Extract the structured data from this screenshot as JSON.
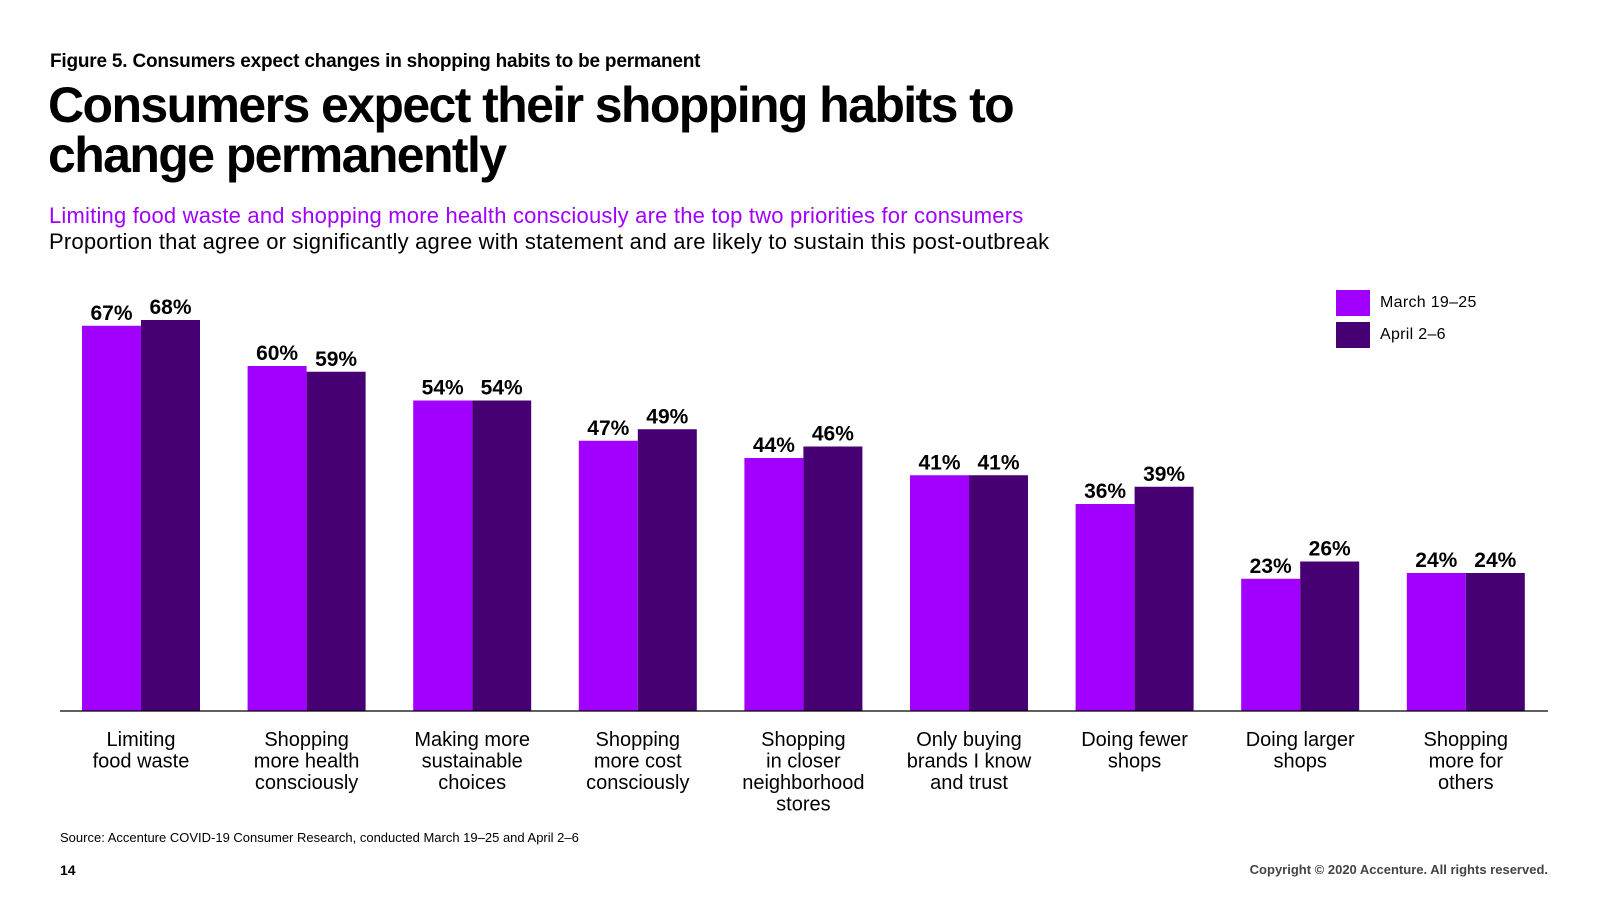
{
  "figure_label": "Figure 5. Consumers expect changes in shopping habits to be permanent",
  "headline": "Consumers expect their shopping habits to change permanently",
  "subtitle": "Limiting food waste and shopping more health consciously are the top two priorities for consumers",
  "description": "Proportion that agree or significantly agree with statement and are likely to sustain this post-outbreak",
  "source": "Source: Accenture COVID-19 Consumer Research, conducted March 19–25 and April 2–6",
  "page_number": "14",
  "copyright": "Copyright © 2020 Accenture. All rights reserved.",
  "colors": {
    "march": "#A100FF",
    "april": "#460073"
  },
  "chart_data": {
    "type": "bar",
    "categories": [
      [
        "Limiting",
        "food waste"
      ],
      [
        "Shopping",
        "more health",
        "consciously"
      ],
      [
        "Making more",
        "sustainable",
        "choices"
      ],
      [
        "Shopping",
        "more cost",
        "consciously"
      ],
      [
        "Shopping",
        "in closer",
        "neighborhood",
        "stores"
      ],
      [
        "Only buying",
        "brands I know",
        "and trust"
      ],
      [
        "Doing fewer",
        "shops"
      ],
      [
        "Doing larger",
        "shops"
      ],
      [
        "Shopping",
        "more for",
        "others"
      ]
    ],
    "series": [
      {
        "name": "March 19–25",
        "values": [
          67,
          60,
          54,
          47,
          44,
          41,
          36,
          23,
          24
        ],
        "labels": [
          "67%",
          "60%",
          "54%",
          "47%",
          "44%",
          "41%",
          "36%",
          "23%",
          "24%"
        ]
      },
      {
        "name": "April 2–6",
        "values": [
          68,
          59,
          54,
          49,
          46,
          41,
          39,
          26,
          24
        ],
        "labels": [
          "68%",
          "59%",
          "54%",
          "49%",
          "46%",
          "41%",
          "39%",
          "26%",
          "24%"
        ]
      }
    ],
    "ylim": [
      0,
      68
    ],
    "legend": "top-right",
    "grid": false
  }
}
